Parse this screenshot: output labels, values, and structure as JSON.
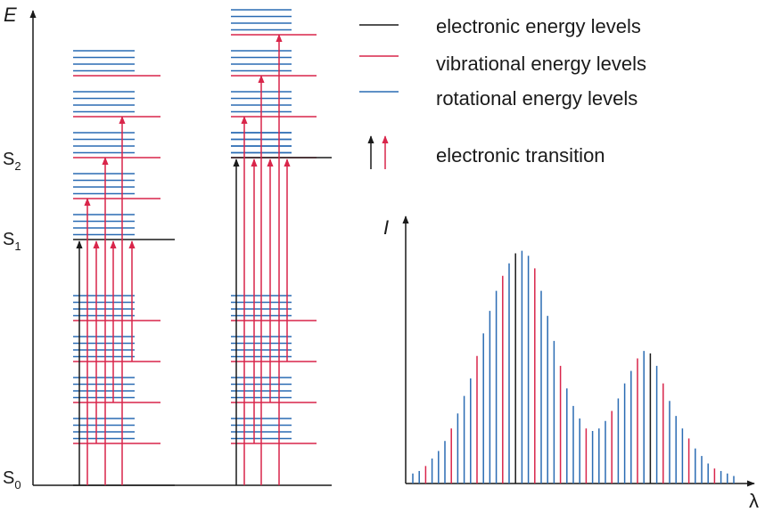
{
  "colors": {
    "electronic": "#1a1a1a",
    "vibrational": "#d9254a",
    "rotational": "#2a6bb3",
    "axis": "#1a1a1a"
  },
  "energy_diagram": {
    "axis_label": "E",
    "states": [
      {
        "main": "S",
        "sub": "0"
      },
      {
        "main": "S",
        "sub": "1"
      },
      {
        "main": "S",
        "sub": "2"
      }
    ]
  },
  "legend": {
    "items": [
      {
        "text": "electronic energy levels",
        "kind": "electronic"
      },
      {
        "text": "vibrational energy levels",
        "kind": "vibrational"
      },
      {
        "text": "rotational energy levels",
        "kind": "rotational"
      },
      {
        "text": "electronic transition",
        "kind": "transition"
      }
    ]
  },
  "chart_data": {
    "type": "bar",
    "xlabel": "λ",
    "ylabel": "I",
    "description_series": "line spectrum with rotational (blue), vibrational (red) and electronic (black) lines, two band envelopes",
    "values": [
      4,
      5,
      7,
      10,
      13,
      17,
      22,
      28,
      35,
      42,
      51,
      60,
      69,
      77,
      83,
      88,
      92,
      93,
      91,
      86,
      77,
      67,
      57,
      47,
      38,
      31,
      26,
      22,
      21,
      22,
      25,
      29,
      34,
      40,
      45,
      50,
      53,
      52,
      47,
      40,
      33,
      27,
      22,
      18,
      14,
      11,
      8,
      6,
      5,
      4,
      3
    ],
    "kinds": [
      "b",
      "b",
      "r",
      "b",
      "b",
      "b",
      "r",
      "b",
      "b",
      "b",
      "r",
      "b",
      "b",
      "b",
      "r",
      "b",
      "k",
      "b",
      "b",
      "r",
      "b",
      "b",
      "b",
      "r",
      "b",
      "b",
      "b",
      "r",
      "b",
      "b",
      "b",
      "r",
      "b",
      "b",
      "b",
      "r",
      "b",
      "k",
      "b",
      "r",
      "b",
      "b",
      "b",
      "r",
      "b",
      "b",
      "b",
      "r",
      "b",
      "b",
      "b"
    ],
    "ylim": [
      0,
      100
    ]
  }
}
